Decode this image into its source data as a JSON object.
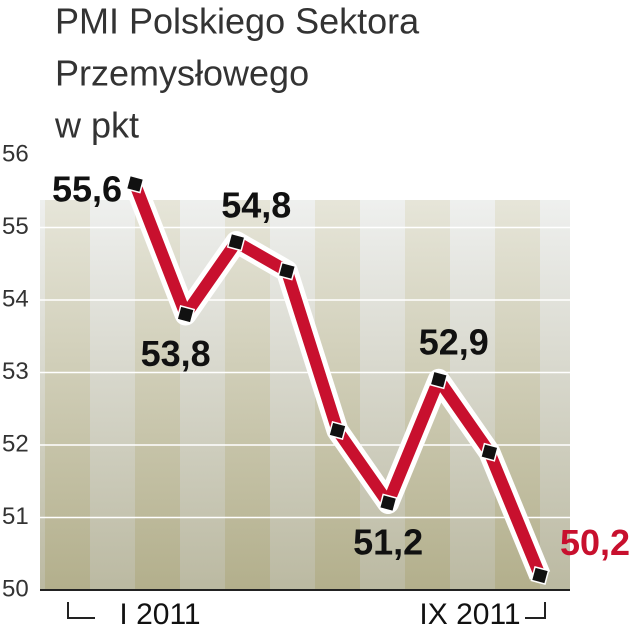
{
  "chart_data": {
    "type": "line",
    "title": [
      "PMI Polskiego Sektora",
      "Przemysłowego"
    ],
    "subtitle": "w pkt",
    "categories": [
      "I 2011",
      null,
      null,
      null,
      null,
      null,
      null,
      null,
      "IX 2011"
    ],
    "series": [
      {
        "name": "PMI",
        "color": "#c8102e",
        "values": [
          55.6,
          53.8,
          54.8,
          54.4,
          52.2,
          51.2,
          52.9,
          51.9,
          50.2
        ],
        "value_labels": [
          "55,6",
          "53,8",
          "54,8",
          null,
          null,
          "51,2",
          "52,9",
          null,
          "50,2"
        ]
      }
    ],
    "ylim": [
      50,
      56
    ],
    "yticks": [
      50,
      51,
      52,
      53,
      54,
      55,
      56
    ],
    "grid": true
  }
}
